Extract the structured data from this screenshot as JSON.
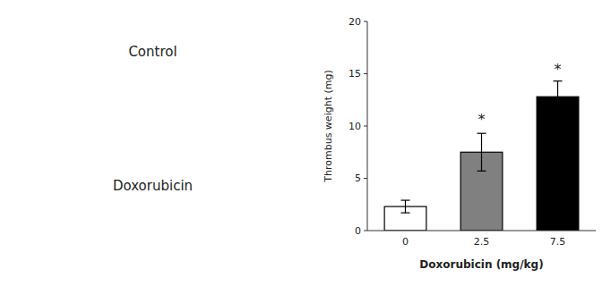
{
  "chart_data": {
    "type": "bar",
    "categories": [
      "0",
      "2.5",
      "7.5"
    ],
    "values": [
      2.3,
      7.5,
      12.8
    ],
    "errors": [
      0.6,
      1.8,
      1.5
    ],
    "colors": [
      "#ffffff",
      "#808080",
      "#000000"
    ],
    "x_label": "Doxorubicin (mg/kg)",
    "y_label": "Thrombus weight (mg)",
    "ylim": [
      0,
      20
    ],
    "yticks": [
      0,
      5,
      10,
      15,
      20
    ],
    "grid": false,
    "annotations": [
      {
        "text": "*",
        "x": "2.5",
        "y": 10.2
      },
      {
        "text": "*",
        "x": "7.5",
        "y": 15.0
      },
      {
        "text": "Control"
      },
      {
        "text": "Doxorubicin"
      }
    ]
  }
}
